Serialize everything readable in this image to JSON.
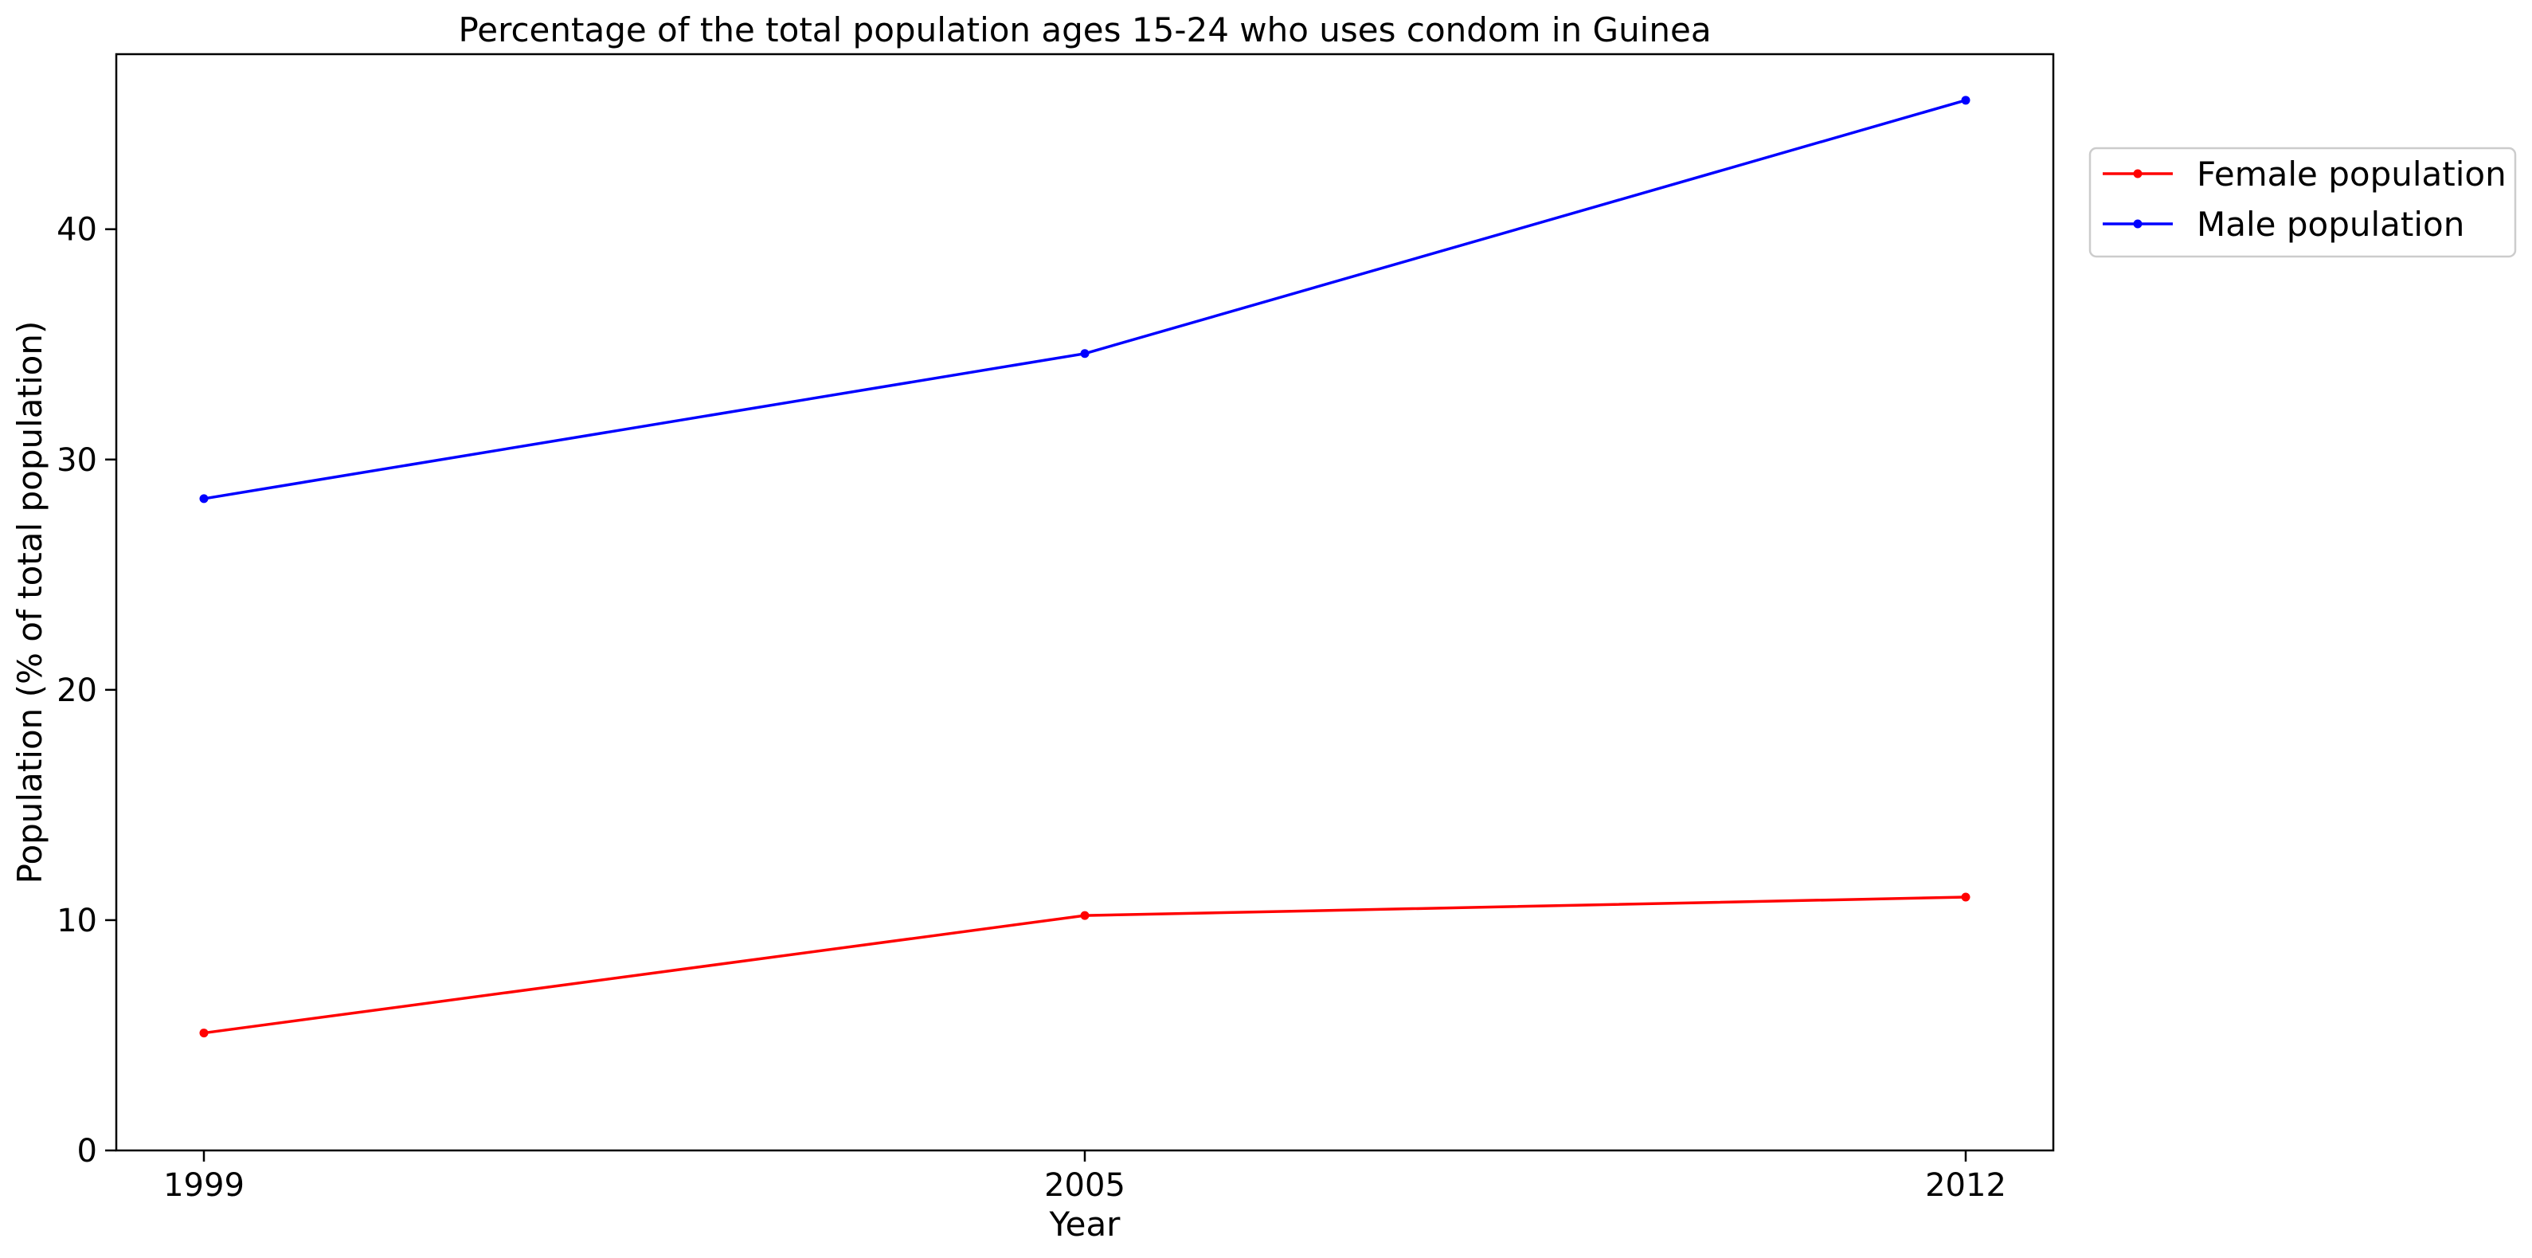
{
  "chart_data": {
    "type": "line",
    "title": "Percentage of the total population ages 15-24 who uses condom in Guinea",
    "xlabel": "Year",
    "ylabel": "Population (% of total population)",
    "x": [
      "1999",
      "2005",
      "2012"
    ],
    "ylim": [
      0,
      47.6
    ],
    "yticks": [
      "0",
      "10",
      "20",
      "30",
      "40"
    ],
    "grid": false,
    "legend_position": "upper right, outside plot",
    "series": [
      {
        "name": "Female population",
        "color": "#ff0000",
        "values": [
          5.1,
          10.2,
          11.0
        ]
      },
      {
        "name": "Male population",
        "color": "#0000ff",
        "values": [
          28.3,
          34.6,
          45.6
        ]
      }
    ]
  }
}
